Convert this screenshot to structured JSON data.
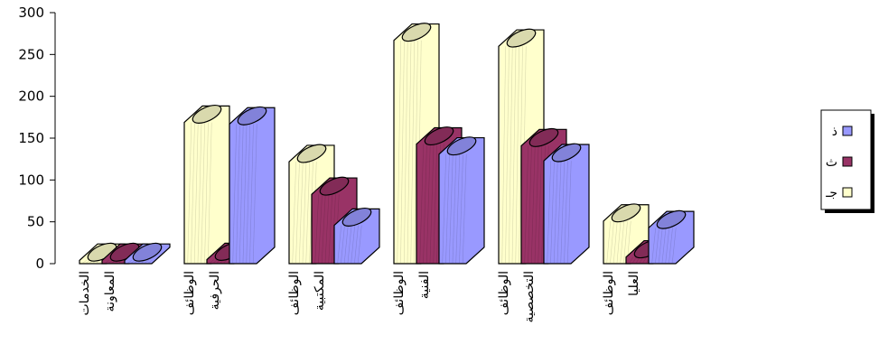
{
  "chart_data": {
    "type": "bar",
    "title": "",
    "xlabel": "",
    "ylabel": "",
    "ylim": [
      0,
      300
    ],
    "yticks": [
      "0",
      "50",
      "100",
      "150",
      "200",
      "250",
      "300"
    ],
    "categories": [
      [
        "الخدمات",
        "المعاونة"
      ],
      [
        "الوظائف",
        "الحرفية"
      ],
      [
        "الوظائف",
        "المكتبية"
      ],
      [
        "الوظائف",
        "الفنية"
      ],
      [
        "الوظائف",
        "التخصصية"
      ],
      [
        "الوظائف",
        "العليا"
      ]
    ],
    "series": [
      {
        "name": "جـ",
        "color": "#FFFFCC",
        "values": [
          1,
          166,
          119,
          264,
          257,
          48
        ]
      },
      {
        "name": "ث",
        "color": "#993366",
        "values": [
          1,
          2,
          80,
          140,
          138,
          5
        ]
      },
      {
        "name": "ذ",
        "color": "#9999FF",
        "values": [
          1,
          164,
          43,
          128,
          120,
          40
        ]
      }
    ],
    "legend_position": "right",
    "grid": false
  }
}
